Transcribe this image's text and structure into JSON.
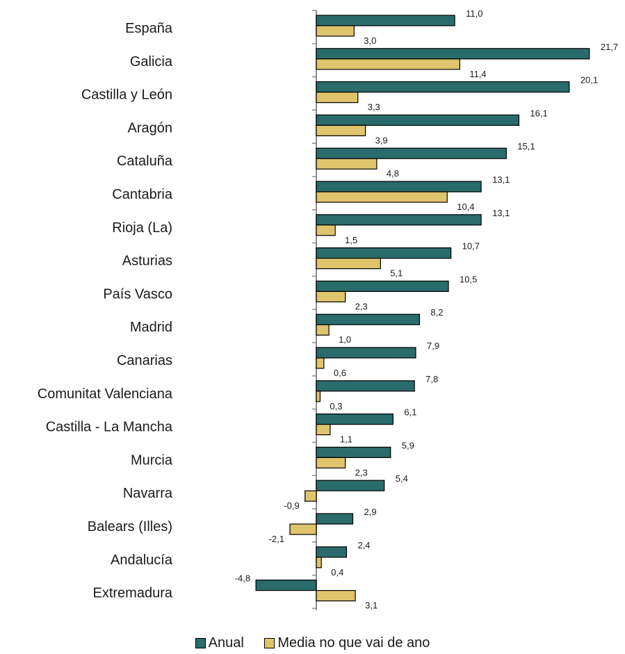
{
  "chart_data": {
    "type": "bar",
    "orientation": "horizontal",
    "categories": [
      "España",
      "Galicia",
      "Castilla y León",
      "Aragón",
      "Cataluña",
      "Cantabria",
      "Rioja (La)",
      "Asturias",
      "País Vasco",
      "Madrid",
      "Canarias",
      "Comunitat Valenciana",
      "Castilla - La Mancha",
      "Murcia",
      "Navarra",
      "Balears (Illes)",
      "Andalucía",
      "Extremadura"
    ],
    "series": [
      {
        "name": "Anual",
        "color": "#2a6b6b",
        "values": [
          11.0,
          21.7,
          20.1,
          16.1,
          15.1,
          13.1,
          13.1,
          10.7,
          10.5,
          8.2,
          7.9,
          7.8,
          6.1,
          5.9,
          5.4,
          2.9,
          2.4,
          -4.8
        ],
        "labels": [
          "11,0",
          "21,7",
          "20,1",
          "16,1",
          "15,1",
          "13,1",
          "13,1",
          "10,7",
          "10,5",
          "8,2",
          "7,9",
          "7,8",
          "6,1",
          "5,9",
          "5,4",
          "2,9",
          "2,4",
          "-4,8"
        ]
      },
      {
        "name": "Media no que vai de ano",
        "color": "#e0c46c",
        "values": [
          3.0,
          11.4,
          3.3,
          3.9,
          4.8,
          10.4,
          1.5,
          5.1,
          2.3,
          1.0,
          0.6,
          0.3,
          1.1,
          2.3,
          -0.9,
          -2.1,
          0.4,
          3.1
        ],
        "labels": [
          "3,0",
          "11,4",
          "3,3",
          "3,9",
          "4,8",
          "10,4",
          "1,5",
          "5,1",
          "2,3",
          "1,0",
          "0,6",
          "0,3",
          "1,1",
          "2,3",
          "-0,9",
          "-2,1",
          "0,4",
          "3,1"
        ]
      }
    ],
    "xlim": [
      -5,
      22
    ],
    "grid": false,
    "legend_position": "bottom"
  }
}
